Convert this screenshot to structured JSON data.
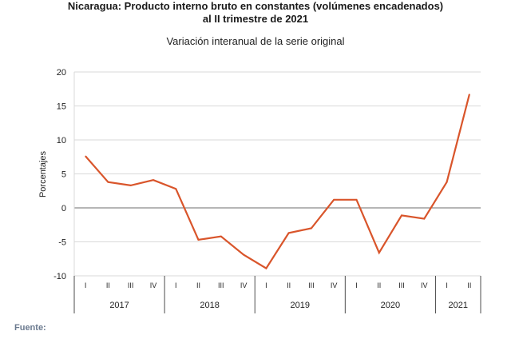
{
  "chart_data": {
    "type": "line",
    "title_line1": "Nicaragua: Producto interno bruto en constantes (volúmenes encadenados)",
    "title_line2": "al II trimestre de 2021",
    "subtitle": "Variación interanual de la serie original",
    "ylabel": "Porcentajes",
    "ylim": [
      -10,
      20
    ],
    "yticks": [
      -10,
      -5,
      0,
      5,
      10,
      15,
      20
    ],
    "grid": true,
    "line_color": "#d9552b",
    "categories": [
      "I",
      "II",
      "III",
      "IV",
      "I",
      "II",
      "III",
      "IV",
      "I",
      "II",
      "III",
      "IV",
      "I",
      "II",
      "III",
      "IV",
      "I",
      "II"
    ],
    "years": [
      {
        "label": "2017",
        "count": 4
      },
      {
        "label": "2018",
        "count": 4
      },
      {
        "label": "2019",
        "count": 4
      },
      {
        "label": "2020",
        "count": 4
      },
      {
        "label": "2021",
        "count": 2
      }
    ],
    "series": [
      {
        "values": [
          7.6,
          3.8,
          3.3,
          4.1,
          2.8,
          -4.7,
          -4.2,
          -6.9,
          -8.9,
          -3.7,
          -3.0,
          1.2,
          1.2,
          -6.6,
          -1.1,
          -1.6,
          3.8,
          16.7
        ]
      }
    ]
  },
  "footer": {
    "source_label": "Fuente:"
  }
}
